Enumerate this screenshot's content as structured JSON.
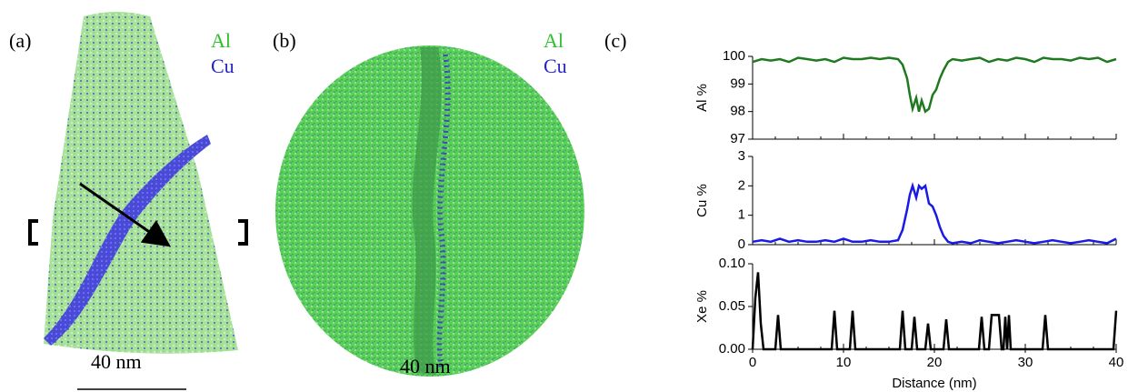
{
  "panels": {
    "a": {
      "label": "(a)",
      "legend": [
        "Al",
        "Cu"
      ],
      "scale": "40 nm"
    },
    "b": {
      "label": "(b)",
      "legend": [
        "Al",
        "Cu"
      ],
      "scale": "40 nm"
    },
    "c": {
      "label": "(c)"
    }
  },
  "chart_data": [
    {
      "type": "line",
      "ylabel": "Al %",
      "color": "#1f7a1f",
      "x": [
        0,
        1,
        2,
        3,
        4,
        5,
        6,
        7,
        8,
        9,
        10,
        11,
        12,
        13,
        14,
        15,
        16,
        16.5,
        17,
        17.3,
        17.6,
        18,
        18.3,
        18.6,
        19,
        19.4,
        19.8,
        20.2,
        20.6,
        21,
        21.5,
        22,
        23,
        24,
        25,
        26,
        27,
        28,
        29,
        30,
        31,
        32,
        33,
        34,
        35,
        36,
        37,
        38,
        39,
        40
      ],
      "values": [
        99.8,
        99.9,
        99.85,
        99.9,
        99.8,
        99.95,
        99.9,
        99.85,
        99.9,
        99.8,
        99.95,
        99.9,
        99.9,
        99.95,
        99.9,
        99.95,
        99.9,
        99.7,
        99.2,
        98.6,
        98.1,
        98.5,
        98.0,
        98.4,
        98.0,
        98.1,
        98.6,
        98.8,
        99.2,
        99.5,
        99.8,
        99.9,
        99.85,
        99.9,
        99.95,
        99.8,
        99.9,
        99.85,
        99.95,
        99.9,
        99.8,
        99.95,
        99.9,
        99.9,
        99.85,
        99.95,
        99.9,
        99.95,
        99.8,
        99.9
      ],
      "xlim": [
        0,
        40
      ],
      "ylim": [
        97,
        100
      ],
      "yticks": [
        97,
        98,
        99,
        100
      ]
    },
    {
      "type": "line",
      "ylabel": "Cu %",
      "color": "#1a1ae6",
      "x": [
        0,
        1,
        2,
        3,
        4,
        5,
        6,
        7,
        8,
        9,
        10,
        11,
        12,
        13,
        14,
        15,
        16,
        16.5,
        17,
        17.3,
        17.6,
        18,
        18.3,
        18.6,
        19,
        19.4,
        19.8,
        20.2,
        20.6,
        21,
        21.5,
        22,
        23,
        24,
        25,
        26,
        27,
        28,
        29,
        30,
        31,
        32,
        33,
        34,
        35,
        36,
        37,
        38,
        39,
        40
      ],
      "values": [
        0.1,
        0.15,
        0.1,
        0.2,
        0.1,
        0.15,
        0.1,
        0.1,
        0.15,
        0.1,
        0.2,
        0.1,
        0.1,
        0.15,
        0.1,
        0.1,
        0.15,
        0.5,
        1.2,
        1.7,
        2.0,
        1.6,
        2.0,
        1.9,
        2.0,
        1.4,
        1.3,
        1.0,
        0.6,
        0.3,
        0.1,
        0.05,
        0.1,
        0.05,
        0.15,
        0.1,
        0.05,
        0.1,
        0.15,
        0.1,
        0.05,
        0.1,
        0.15,
        0.1,
        0.05,
        0.1,
        0.15,
        0.1,
        0.05,
        0.2
      ],
      "xlim": [
        0,
        40
      ],
      "ylim": [
        0,
        3
      ],
      "yticks": [
        0,
        1,
        2,
        3
      ]
    },
    {
      "type": "line",
      "ylabel": "Xe %",
      "xlabel": "Distance (nm)",
      "color": "#000000",
      "x": [
        0,
        0.3,
        0.6,
        0.9,
        1.2,
        2.5,
        2.8,
        3.1,
        8.7,
        9,
        9.3,
        10.7,
        11,
        11.3,
        16.2,
        16.5,
        16.8,
        17.5,
        17.8,
        18.1,
        19,
        19.3,
        19.6,
        21,
        21.3,
        21.6,
        24.9,
        25.2,
        25.5,
        26,
        26.3,
        26.8,
        27.1,
        27.4,
        27.6,
        27.8,
        28,
        28.2,
        28.4,
        31.9,
        32.2,
        32.5,
        39.7,
        40
      ],
      "values": [
        0,
        0.06,
        0.09,
        0.03,
        0,
        0,
        0.04,
        0,
        0,
        0.045,
        0,
        0,
        0.045,
        0,
        0,
        0.045,
        0,
        0,
        0.038,
        0,
        0,
        0.03,
        0,
        0,
        0.035,
        0,
        0,
        0.038,
        0,
        0,
        0.04,
        0.04,
        0.04,
        0,
        0,
        0.038,
        0,
        0.04,
        0,
        0,
        0.04,
        0,
        0,
        0.045
      ],
      "xlim": [
        0,
        40
      ],
      "ylim": [
        0,
        0.1
      ],
      "yticks": [
        {
          "value": 0,
          "label": "0.00"
        },
        {
          "value": 0.05,
          "label": "0.05"
        },
        {
          "value": 0.1,
          "label": "0.10"
        }
      ],
      "xticks": [
        0,
        10,
        20,
        30,
        40
      ]
    }
  ]
}
